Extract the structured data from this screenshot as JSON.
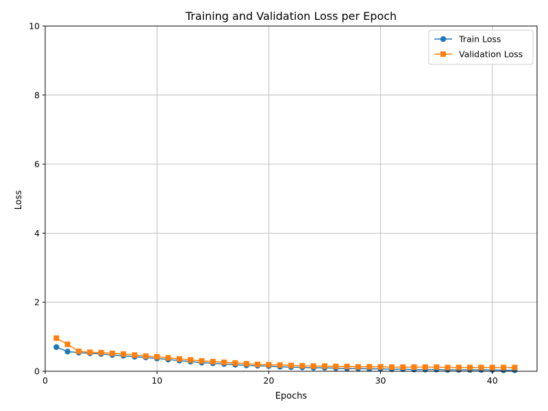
{
  "chart_data": {
    "type": "line",
    "title": "Training and Validation Loss per Epoch",
    "xlabel": "Epochs",
    "ylabel": "Loss",
    "xlim": [
      0,
      44
    ],
    "ylim": [
      0,
      10
    ],
    "xticks": [
      0,
      10,
      20,
      30,
      40
    ],
    "yticks": [
      0,
      2,
      4,
      6,
      8,
      10
    ],
    "grid": true,
    "legend_position": "top-right",
    "x": [
      1,
      2,
      3,
      4,
      5,
      6,
      7,
      8,
      9,
      10,
      11,
      12,
      13,
      14,
      15,
      16,
      17,
      18,
      19,
      20,
      21,
      22,
      23,
      24,
      25,
      26,
      27,
      28,
      29,
      30,
      31,
      32,
      33,
      34,
      35,
      36,
      37,
      38,
      39,
      40,
      41,
      42
    ],
    "series": [
      {
        "name": "Train Loss",
        "color": "#1f77b4",
        "marker": "circle",
        "values": [
          0.7,
          0.57,
          0.54,
          0.52,
          0.5,
          0.47,
          0.45,
          0.42,
          0.4,
          0.37,
          0.34,
          0.31,
          0.28,
          0.25,
          0.23,
          0.21,
          0.19,
          0.17,
          0.16,
          0.15,
          0.13,
          0.12,
          0.11,
          0.1,
          0.1,
          0.09,
          0.08,
          0.08,
          0.07,
          0.07,
          0.06,
          0.06,
          0.05,
          0.05,
          0.05,
          0.04,
          0.04,
          0.04,
          0.04,
          0.04,
          0.03,
          0.03
        ]
      },
      {
        "name": "Validation Loss",
        "color": "#ff7f0e",
        "marker": "square",
        "values": [
          0.96,
          0.78,
          0.58,
          0.55,
          0.54,
          0.52,
          0.5,
          0.47,
          0.44,
          0.42,
          0.39,
          0.36,
          0.33,
          0.3,
          0.28,
          0.26,
          0.24,
          0.22,
          0.2,
          0.19,
          0.18,
          0.17,
          0.16,
          0.15,
          0.15,
          0.14,
          0.14,
          0.13,
          0.13,
          0.13,
          0.12,
          0.12,
          0.12,
          0.12,
          0.12,
          0.11,
          0.11,
          0.11,
          0.11,
          0.11,
          0.11,
          0.11
        ]
      }
    ]
  }
}
